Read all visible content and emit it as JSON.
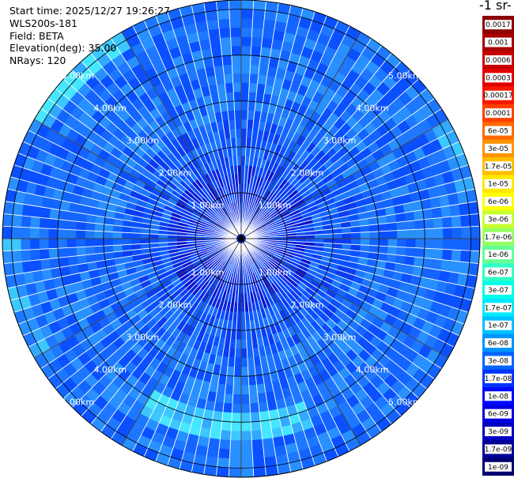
{
  "header": {
    "start_time": "Start time: 2025/12/27 19:26:27",
    "instrument": "WLS200s-181",
    "field": "Field: BETA",
    "elevation": "Elevation(deg): 35.00",
    "nrays": "NRays: 120"
  },
  "colorbar": {
    "title": "-1 sr-",
    "labels": [
      "0.0017",
      "0.001",
      "0.0006",
      "0.0003",
      "0.00017",
      "0.0001",
      "6e-05",
      "3e-05",
      "1.7e-05",
      "1e-05",
      "6e-06",
      "3e-06",
      "1.7e-06",
      "1e-06",
      "6e-07",
      "3e-07",
      "1.7e-07",
      "1e-07",
      "6e-08",
      "3e-08",
      "1.7e-08",
      "1e-08",
      "6e-09",
      "3e-09",
      "1.7e-09",
      "1e-09"
    ],
    "colors": [
      "#8b0000",
      "#a80000",
      "#c80000",
      "#e00000",
      "#f81800",
      "#ff4000",
      "#ff6a00",
      "#ff9400",
      "#ffbe00",
      "#ffe800",
      "#ffff00",
      "#c8ff30",
      "#96ff64",
      "#64ff96",
      "#30ffc8",
      "#00ffe8",
      "#00e8ff",
      "#00c0ff",
      "#0094ff",
      "#0064ff",
      "#0034ff",
      "#0008ff",
      "#0000e0",
      "#0000c0",
      "#000098",
      "#000070"
    ]
  },
  "chart_data": {
    "type": "heatmap",
    "projection": "polar PPI",
    "nrays": 120,
    "elevation_deg": 35.0,
    "field": "BETA",
    "range_rings_km": [
      1,
      2,
      3,
      4,
      5
    ],
    "ring_labels": [
      "1.00km",
      "2.00km",
      "3.00km",
      "4.00km",
      "5.00km"
    ],
    "max_range_km": 5.2,
    "colorscale": "log",
    "value_range": [
      1e-09,
      0.0017
    ],
    "background_level": 1e-08,
    "high_backscatter_arcs": [
      {
        "azimuth_from_deg": 300,
        "azimuth_to_deg": 330,
        "range_km": [
          4.8,
          5.2
        ],
        "level": 1.7e-07
      },
      {
        "azimuth_from_deg": 160,
        "azimuth_to_deg": 210,
        "range_km": [
          3.8,
          4.4
        ],
        "level": 1.7e-07
      },
      {
        "azimuth_from_deg": 60,
        "azimuth_to_deg": 80,
        "range_km": [
          4.9,
          5.2
        ],
        "level": 6e-08
      },
      {
        "azimuth_from_deg": 240,
        "azimuth_to_deg": 270,
        "range_km": [
          4.8,
          5.2
        ],
        "level": 6e-08
      }
    ],
    "grid": true
  }
}
